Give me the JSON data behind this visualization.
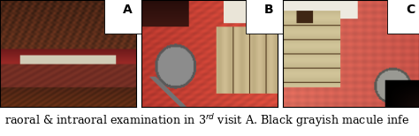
{
  "caption": "raoral & intraoral examination in 3$^{rd}$ visit A. Black grayish macule infe",
  "label_A": "A",
  "label_B": "B",
  "label_C": "C",
  "bg_color": "#ffffff",
  "border_color": "#000000",
  "caption_fontsize": 9.2,
  "label_fontsize": 10,
  "fig_width": 4.74,
  "fig_height": 1.54,
  "dpi": 100
}
